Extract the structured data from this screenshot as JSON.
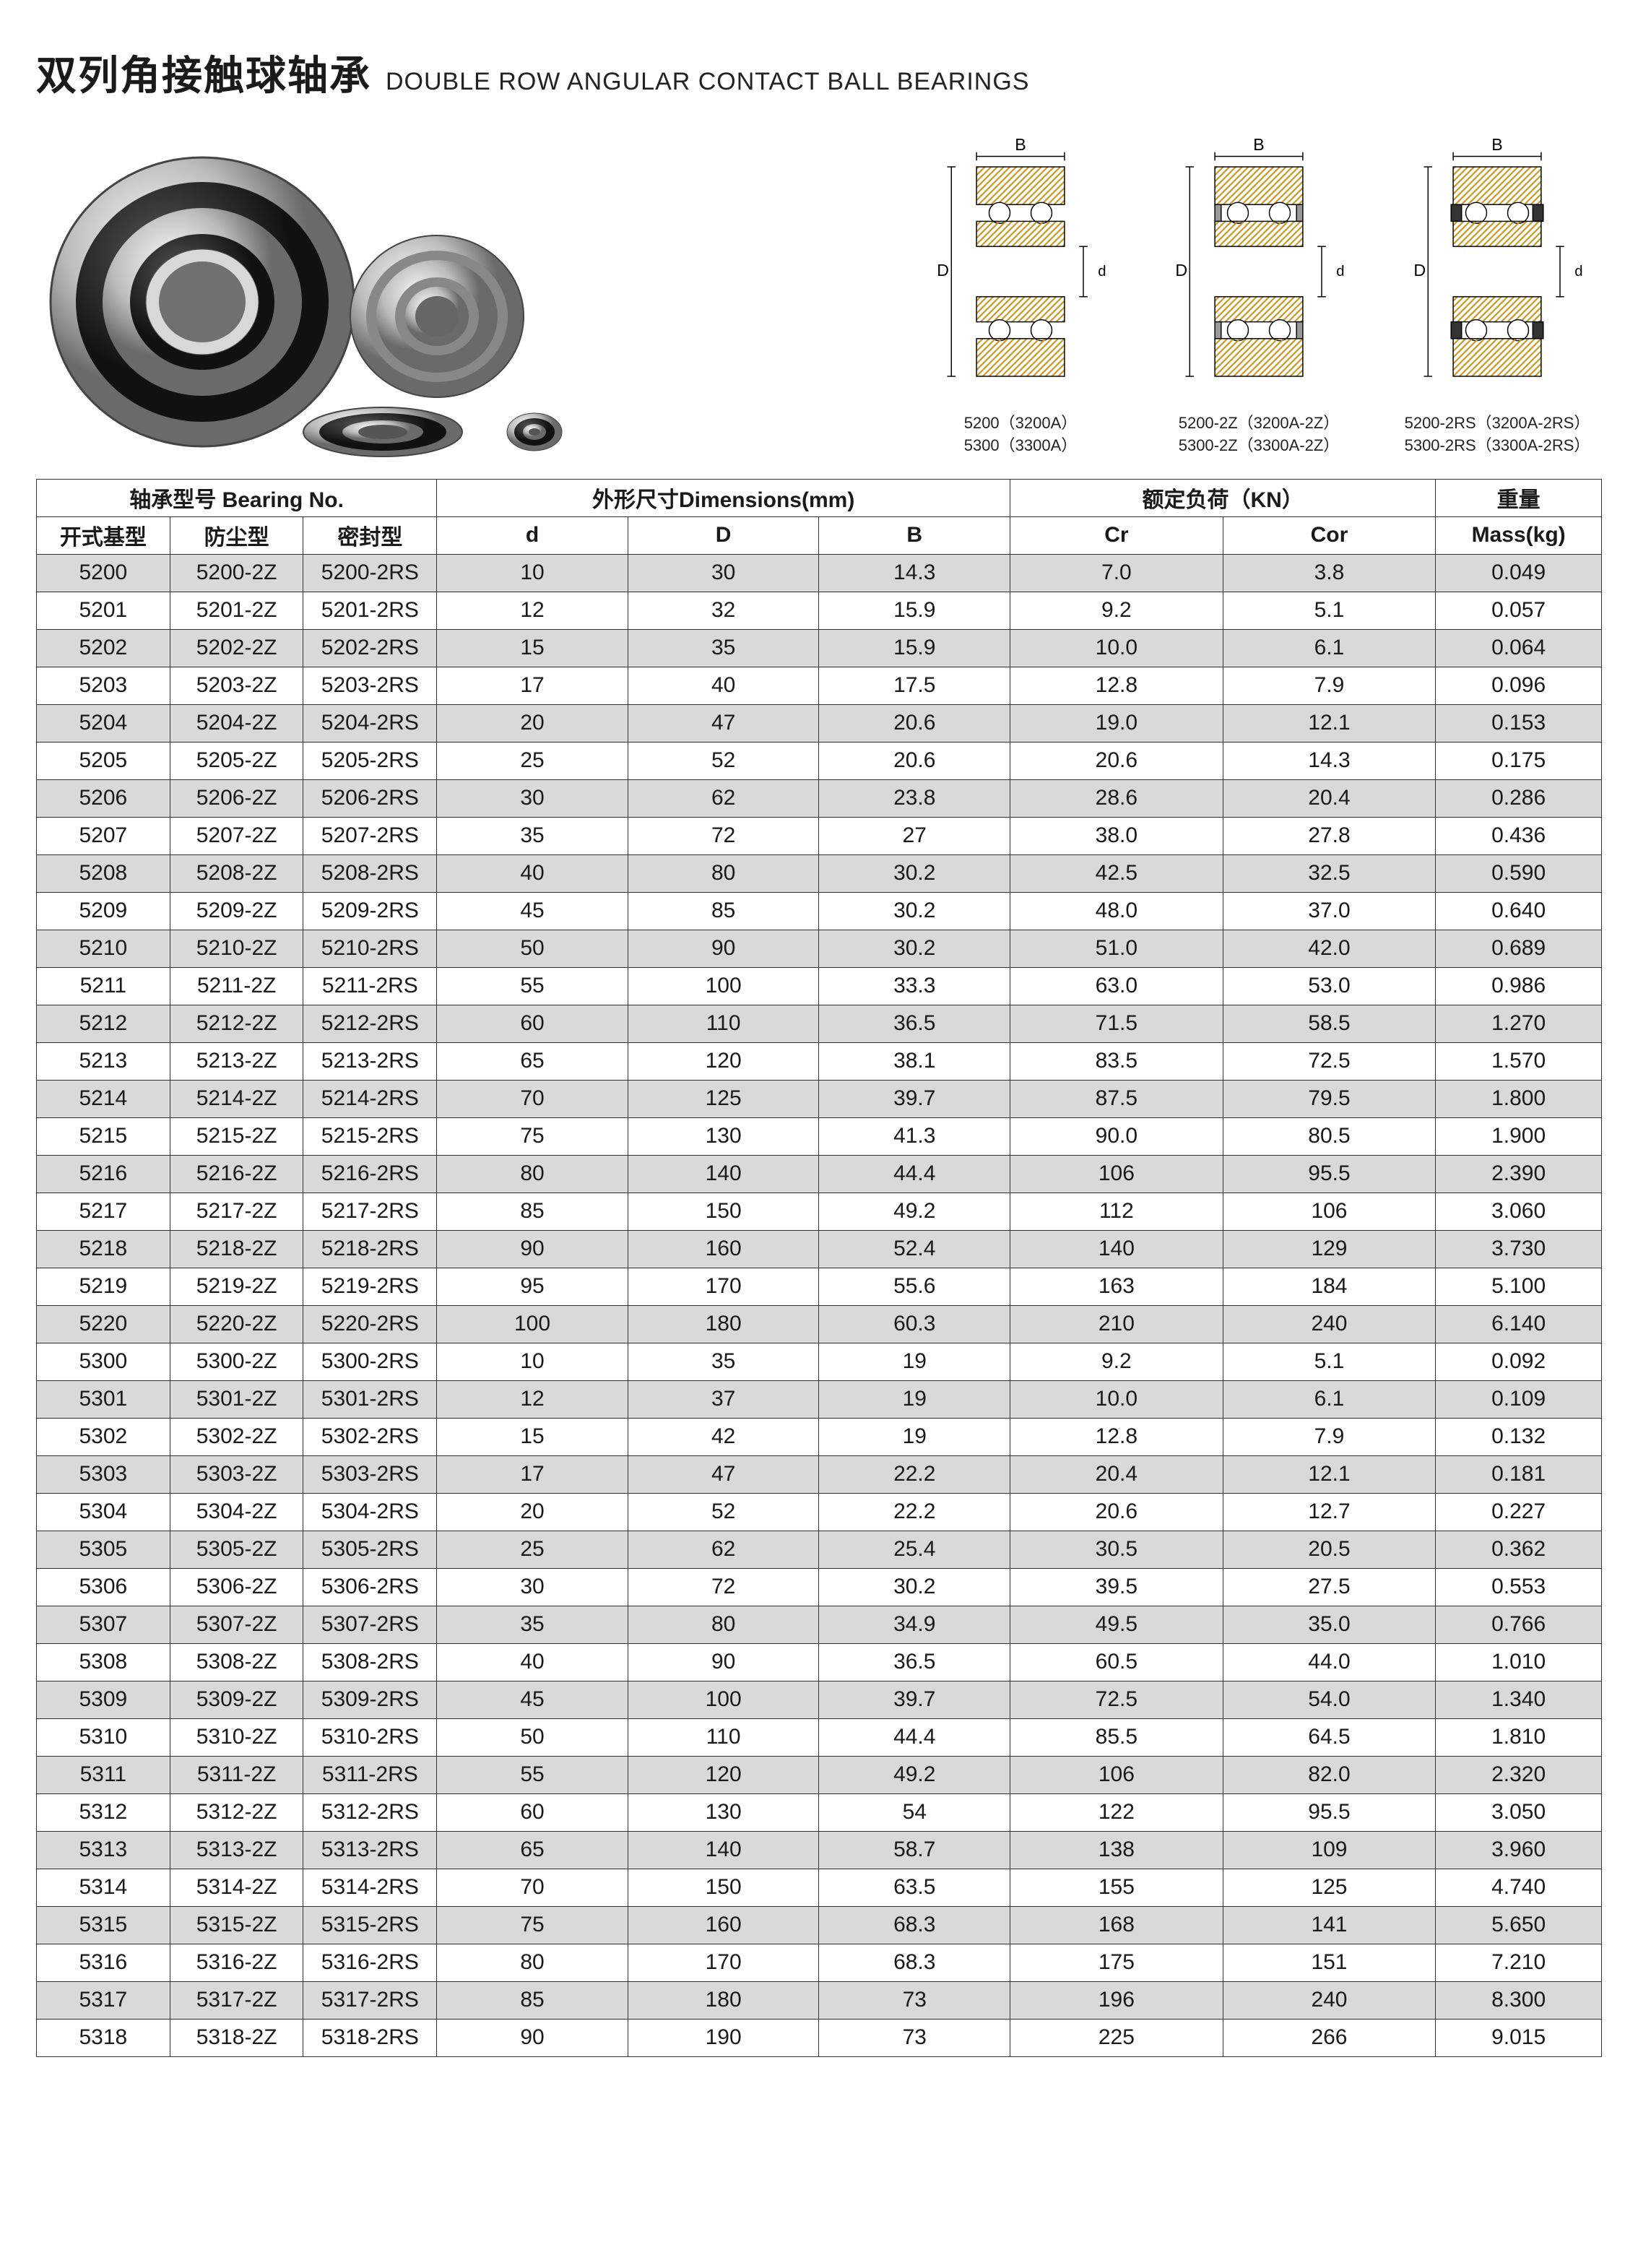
{
  "title_cn": "双列角接触球轴承",
  "title_en": "DOUBLE ROW ANGULAR CONTACT BALL BEARINGS",
  "diagram_labels": {
    "B": "B",
    "D": "D",
    "d": "d"
  },
  "diagram_captions": [
    "5200（3200A）\n5300（3300A）",
    "5200-2Z（3200A-2Z）\n5300-2Z（3300A-2Z）",
    "5200-2RS（3200A-2RS）\n5300-2RS（3300A-2RS）"
  ],
  "headers": {
    "bearing_group": "轴承型号 Bearing No.",
    "dims_group": "外形尺寸Dimensions(mm)",
    "load_group": "额定负荷（KN）",
    "mass_group": "重量",
    "open": "开式基型",
    "shield": "防尘型",
    "seal": "密封型",
    "d": "d",
    "D": "D",
    "B": "B",
    "Cr": "Cr",
    "Cor": "Cor",
    "mass": "Mass(kg)"
  },
  "rows": [
    {
      "open": "5200",
      "shield": "5200-2Z",
      "seal": "5200-2RS",
      "d": "10",
      "D": "30",
      "B": "14.3",
      "Cr": "7.0",
      "Cor": "3.8",
      "mass": "0.049"
    },
    {
      "open": "5201",
      "shield": "5201-2Z",
      "seal": "5201-2RS",
      "d": "12",
      "D": "32",
      "B": "15.9",
      "Cr": "9.2",
      "Cor": "5.1",
      "mass": "0.057"
    },
    {
      "open": "5202",
      "shield": "5202-2Z",
      "seal": "5202-2RS",
      "d": "15",
      "D": "35",
      "B": "15.9",
      "Cr": "10.0",
      "Cor": "6.1",
      "mass": "0.064"
    },
    {
      "open": "5203",
      "shield": "5203-2Z",
      "seal": "5203-2RS",
      "d": "17",
      "D": "40",
      "B": "17.5",
      "Cr": "12.8",
      "Cor": "7.9",
      "mass": "0.096"
    },
    {
      "open": "5204",
      "shield": "5204-2Z",
      "seal": "5204-2RS",
      "d": "20",
      "D": "47",
      "B": "20.6",
      "Cr": "19.0",
      "Cor": "12.1",
      "mass": "0.153"
    },
    {
      "open": "5205",
      "shield": "5205-2Z",
      "seal": "5205-2RS",
      "d": "25",
      "D": "52",
      "B": "20.6",
      "Cr": "20.6",
      "Cor": "14.3",
      "mass": "0.175"
    },
    {
      "open": "5206",
      "shield": "5206-2Z",
      "seal": "5206-2RS",
      "d": "30",
      "D": "62",
      "B": "23.8",
      "Cr": "28.6",
      "Cor": "20.4",
      "mass": "0.286"
    },
    {
      "open": "5207",
      "shield": "5207-2Z",
      "seal": "5207-2RS",
      "d": "35",
      "D": "72",
      "B": "27",
      "Cr": "38.0",
      "Cor": "27.8",
      "mass": "0.436"
    },
    {
      "open": "5208",
      "shield": "5208-2Z",
      "seal": "5208-2RS",
      "d": "40",
      "D": "80",
      "B": "30.2",
      "Cr": "42.5",
      "Cor": "32.5",
      "mass": "0.590"
    },
    {
      "open": "5209",
      "shield": "5209-2Z",
      "seal": "5209-2RS",
      "d": "45",
      "D": "85",
      "B": "30.2",
      "Cr": "48.0",
      "Cor": "37.0",
      "mass": "0.640"
    },
    {
      "open": "5210",
      "shield": "5210-2Z",
      "seal": "5210-2RS",
      "d": "50",
      "D": "90",
      "B": "30.2",
      "Cr": "51.0",
      "Cor": "42.0",
      "mass": "0.689"
    },
    {
      "open": "5211",
      "shield": "5211-2Z",
      "seal": "5211-2RS",
      "d": "55",
      "D": "100",
      "B": "33.3",
      "Cr": "63.0",
      "Cor": "53.0",
      "mass": "0.986"
    },
    {
      "open": "5212",
      "shield": "5212-2Z",
      "seal": "5212-2RS",
      "d": "60",
      "D": "110",
      "B": "36.5",
      "Cr": "71.5",
      "Cor": "58.5",
      "mass": "1.270"
    },
    {
      "open": "5213",
      "shield": "5213-2Z",
      "seal": "5213-2RS",
      "d": "65",
      "D": "120",
      "B": "38.1",
      "Cr": "83.5",
      "Cor": "72.5",
      "mass": "1.570"
    },
    {
      "open": "5214",
      "shield": "5214-2Z",
      "seal": "5214-2RS",
      "d": "70",
      "D": "125",
      "B": "39.7",
      "Cr": "87.5",
      "Cor": "79.5",
      "mass": "1.800"
    },
    {
      "open": "5215",
      "shield": "5215-2Z",
      "seal": "5215-2RS",
      "d": "75",
      "D": "130",
      "B": "41.3",
      "Cr": "90.0",
      "Cor": "80.5",
      "mass": "1.900"
    },
    {
      "open": "5216",
      "shield": "5216-2Z",
      "seal": "5216-2RS",
      "d": "80",
      "D": "140",
      "B": "44.4",
      "Cr": "106",
      "Cor": "95.5",
      "mass": "2.390"
    },
    {
      "open": "5217",
      "shield": "5217-2Z",
      "seal": "5217-2RS",
      "d": "85",
      "D": "150",
      "B": "49.2",
      "Cr": "112",
      "Cor": "106",
      "mass": "3.060"
    },
    {
      "open": "5218",
      "shield": "5218-2Z",
      "seal": "5218-2RS",
      "d": "90",
      "D": "160",
      "B": "52.4",
      "Cr": "140",
      "Cor": "129",
      "mass": "3.730"
    },
    {
      "open": "5219",
      "shield": "5219-2Z",
      "seal": "5219-2RS",
      "d": "95",
      "D": "170",
      "B": "55.6",
      "Cr": "163",
      "Cor": "184",
      "mass": "5.100"
    },
    {
      "open": "5220",
      "shield": "5220-2Z",
      "seal": "5220-2RS",
      "d": "100",
      "D": "180",
      "B": "60.3",
      "Cr": "210",
      "Cor": "240",
      "mass": "6.140"
    },
    {
      "open": "5300",
      "shield": "5300-2Z",
      "seal": "5300-2RS",
      "d": "10",
      "D": "35",
      "B": "19",
      "Cr": "9.2",
      "Cor": "5.1",
      "mass": "0.092"
    },
    {
      "open": "5301",
      "shield": "5301-2Z",
      "seal": "5301-2RS",
      "d": "12",
      "D": "37",
      "B": "19",
      "Cr": "10.0",
      "Cor": "6.1",
      "mass": "0.109"
    },
    {
      "open": "5302",
      "shield": "5302-2Z",
      "seal": "5302-2RS",
      "d": "15",
      "D": "42",
      "B": "19",
      "Cr": "12.8",
      "Cor": "7.9",
      "mass": "0.132"
    },
    {
      "open": "5303",
      "shield": "5303-2Z",
      "seal": "5303-2RS",
      "d": "17",
      "D": "47",
      "B": "22.2",
      "Cr": "20.4",
      "Cor": "12.1",
      "mass": "0.181"
    },
    {
      "open": "5304",
      "shield": "5304-2Z",
      "seal": "5304-2RS",
      "d": "20",
      "D": "52",
      "B": "22.2",
      "Cr": "20.6",
      "Cor": "12.7",
      "mass": "0.227"
    },
    {
      "open": "5305",
      "shield": "5305-2Z",
      "seal": "5305-2RS",
      "d": "25",
      "D": "62",
      "B": "25.4",
      "Cr": "30.5",
      "Cor": "20.5",
      "mass": "0.362"
    },
    {
      "open": "5306",
      "shield": "5306-2Z",
      "seal": "5306-2RS",
      "d": "30",
      "D": "72",
      "B": "30.2",
      "Cr": "39.5",
      "Cor": "27.5",
      "mass": "0.553"
    },
    {
      "open": "5307",
      "shield": "5307-2Z",
      "seal": "5307-2RS",
      "d": "35",
      "D": "80",
      "B": "34.9",
      "Cr": "49.5",
      "Cor": "35.0",
      "mass": "0.766"
    },
    {
      "open": "5308",
      "shield": "5308-2Z",
      "seal": "5308-2RS",
      "d": "40",
      "D": "90",
      "B": "36.5",
      "Cr": "60.5",
      "Cor": "44.0",
      "mass": "1.010"
    },
    {
      "open": "5309",
      "shield": "5309-2Z",
      "seal": "5309-2RS",
      "d": "45",
      "D": "100",
      "B": "39.7",
      "Cr": "72.5",
      "Cor": "54.0",
      "mass": "1.340"
    },
    {
      "open": "5310",
      "shield": "5310-2Z",
      "seal": "5310-2RS",
      "d": "50",
      "D": "110",
      "B": "44.4",
      "Cr": "85.5",
      "Cor": "64.5",
      "mass": "1.810"
    },
    {
      "open": "5311",
      "shield": "5311-2Z",
      "seal": "5311-2RS",
      "d": "55",
      "D": "120",
      "B": "49.2",
      "Cr": "106",
      "Cor": "82.0",
      "mass": "2.320"
    },
    {
      "open": "5312",
      "shield": "5312-2Z",
      "seal": "5312-2RS",
      "d": "60",
      "D": "130",
      "B": "54",
      "Cr": "122",
      "Cor": "95.5",
      "mass": "3.050"
    },
    {
      "open": "5313",
      "shield": "5313-2Z",
      "seal": "5313-2RS",
      "d": "65",
      "D": "140",
      "B": "58.7",
      "Cr": "138",
      "Cor": "109",
      "mass": "3.960"
    },
    {
      "open": "5314",
      "shield": "5314-2Z",
      "seal": "5314-2RS",
      "d": "70",
      "D": "150",
      "B": "63.5",
      "Cr": "155",
      "Cor": "125",
      "mass": "4.740"
    },
    {
      "open": "5315",
      "shield": "5315-2Z",
      "seal": "5315-2RS",
      "d": "75",
      "D": "160",
      "B": "68.3",
      "Cr": "168",
      "Cor": "141",
      "mass": "5.650"
    },
    {
      "open": "5316",
      "shield": "5316-2Z",
      "seal": "5316-2RS",
      "d": "80",
      "D": "170",
      "B": "68.3",
      "Cr": "175",
      "Cor": "151",
      "mass": "7.210"
    },
    {
      "open": "5317",
      "shield": "5317-2Z",
      "seal": "5317-2RS",
      "d": "85",
      "D": "180",
      "B": "73",
      "Cr": "196",
      "Cor": "240",
      "mass": "8.300"
    },
    {
      "open": "5318",
      "shield": "5318-2Z",
      "seal": "5318-2RS",
      "d": "90",
      "D": "190",
      "B": "73",
      "Cr": "225",
      "Cor": "266",
      "mass": "9.015"
    }
  ],
  "colors": {
    "shade": "#d9d9d9",
    "border": "#333333",
    "hatch": "#e0b030"
  }
}
